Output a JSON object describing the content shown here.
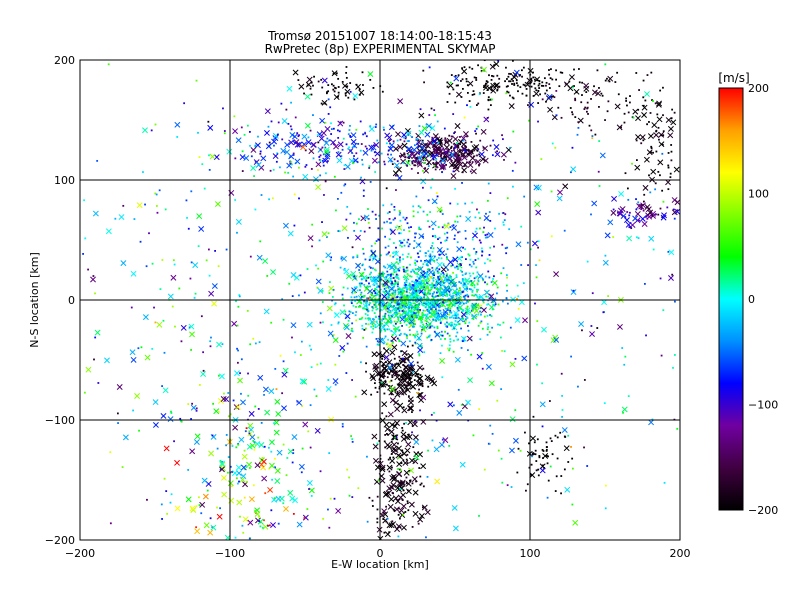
{
  "chart_data": {
    "type": "scatter",
    "title": "Tromsø 20151007 18:14:00-18:15:43",
    "subtitle": "RwPretec (8p) EXPERIMENTAL SKYMAP",
    "xlabel": "E-W location [km]",
    "ylabel": "N-S location [km]",
    "xlim": [
      -200,
      200
    ],
    "ylim": [
      -200,
      200
    ],
    "x_ticks": [
      -200,
      -100,
      0,
      100,
      200
    ],
    "y_ticks": [
      -200,
      -100,
      0,
      100,
      200
    ],
    "grid": true,
    "marker_styles": [
      "dot",
      "x"
    ],
    "colorbar": {
      "label": "[m/s]",
      "min": -200,
      "max": 200,
      "ticks": [
        200,
        100,
        0,
        -100,
        -200
      ],
      "colors": [
        "#000000",
        "#400040",
        "#7000a0",
        "#0000ff",
        "#0090ff",
        "#00ffff",
        "#00ff00",
        "#80ff00",
        "#ffff00",
        "#ffa000",
        "#ff0000"
      ]
    },
    "clusters": [
      {
        "x": 25,
        "y": 0,
        "sx": 24,
        "sy": 16,
        "v": 0,
        "vs": 40,
        "count": 1500,
        "x_frac": 0.12
      },
      {
        "x": 28,
        "y": 45,
        "sx": 32,
        "sy": 22,
        "v": -40,
        "vs": 45,
        "count": 320,
        "x_frac": 0.1
      },
      {
        "x": 42,
        "y": 122,
        "sx": 16,
        "sy": 8,
        "v": -170,
        "vs": 22,
        "count": 260,
        "x_frac": 0.4
      },
      {
        "x": -20,
        "y": 128,
        "sx": 45,
        "sy": 12,
        "v": -70,
        "vs": 45,
        "count": 280,
        "x_frac": 0.35
      },
      {
        "x": 12,
        "y": -62,
        "sx": 10,
        "sy": 9,
        "v": -195,
        "vs": 10,
        "count": 170,
        "x_frac": 0.5
      },
      {
        "x": 12,
        "y": -145,
        "sx": 9,
        "sy": 38,
        "v": -190,
        "vs": 15,
        "count": 230,
        "x_frac": 0.5
      },
      {
        "x": -92,
        "y": -150,
        "sx": 22,
        "sy": 38,
        "v": 45,
        "vs": 90,
        "count": 200,
        "x_frac": 0.5
      },
      {
        "x": 85,
        "y": 180,
        "sx": 22,
        "sy": 9,
        "v": -200,
        "vs": 8,
        "count": 180,
        "x_frac": 0.15
      },
      {
        "x": -30,
        "y": 178,
        "sx": 14,
        "sy": 7,
        "v": -200,
        "vs": 8,
        "count": 60,
        "x_frac": 0.2
      },
      {
        "x": 185,
        "y": 128,
        "sx": 9,
        "sy": 25,
        "v": -195,
        "vs": 10,
        "count": 90,
        "x_frac": 0.3
      },
      {
        "x": 175,
        "y": 73,
        "sx": 14,
        "sy": 6,
        "v": -110,
        "vs": 40,
        "count": 60,
        "x_frac": 0.6
      },
      {
        "x": 110,
        "y": -130,
        "sx": 10,
        "sy": 14,
        "v": -200,
        "vs": 6,
        "count": 60,
        "x_frac": 0.1
      },
      {
        "x": 140,
        "y": 165,
        "sx": 22,
        "sy": 14,
        "v": -190,
        "vs": 15,
        "count": 70,
        "x_frac": 0.15
      },
      {
        "x": 0,
        "y": 0,
        "sx": 120,
        "sy": 110,
        "v": -20,
        "vs": 75,
        "count": 900,
        "x_frac": 0.3
      }
    ]
  }
}
